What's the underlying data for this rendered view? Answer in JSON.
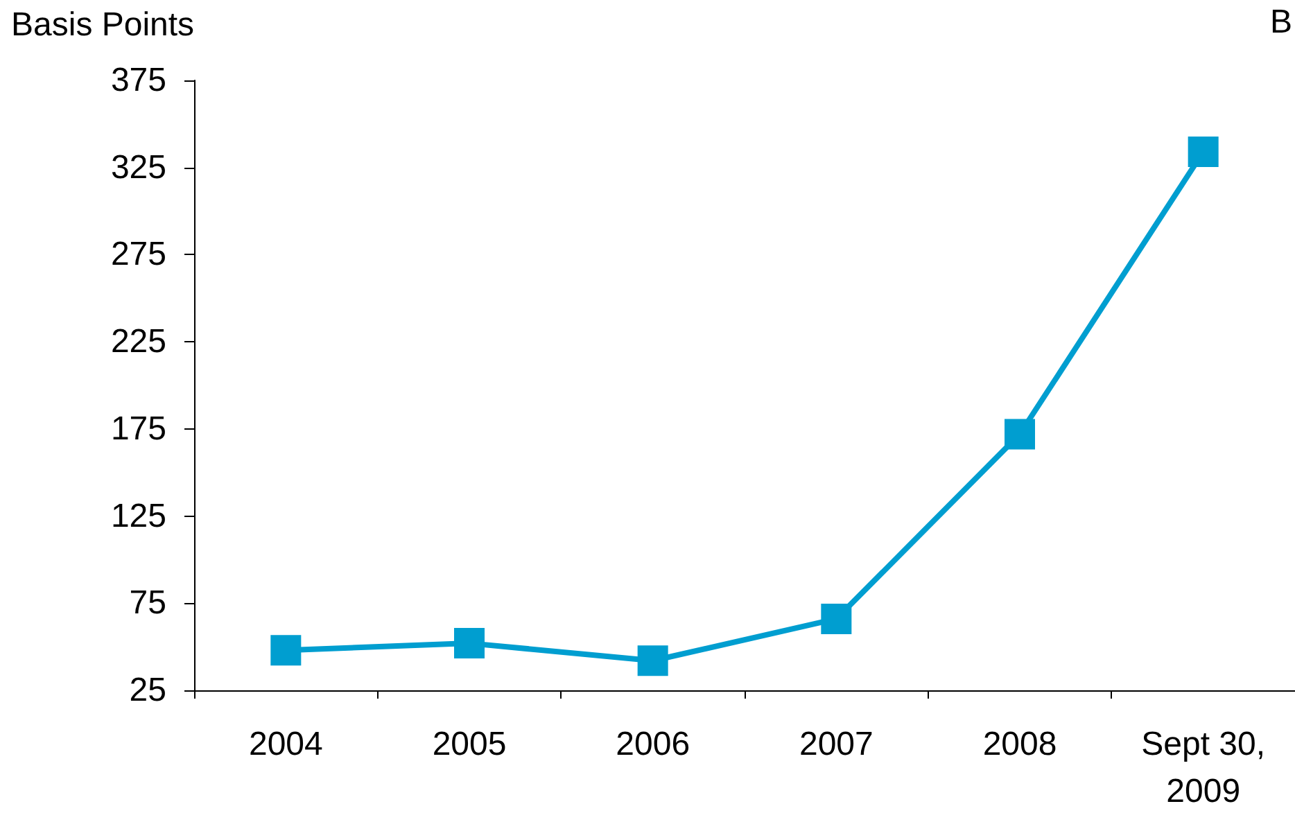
{
  "chart_data": {
    "type": "line",
    "ylabel": "Basis Points",
    "annotations": [
      "B"
    ],
    "categories": [
      "2004",
      "2005",
      "2006",
      "2007",
      "2008",
      "Sept 30,\n2009"
    ],
    "series": [
      {
        "color": "#009ed0",
        "values": [
          48,
          52,
          42,
          66,
          172,
          334
        ]
      }
    ],
    "ylim": [
      25,
      375
    ],
    "yticks": [
      25,
      75,
      125,
      175,
      225,
      275,
      325,
      375
    ],
    "grid": false,
    "marker": "square",
    "line_style": "solid"
  }
}
